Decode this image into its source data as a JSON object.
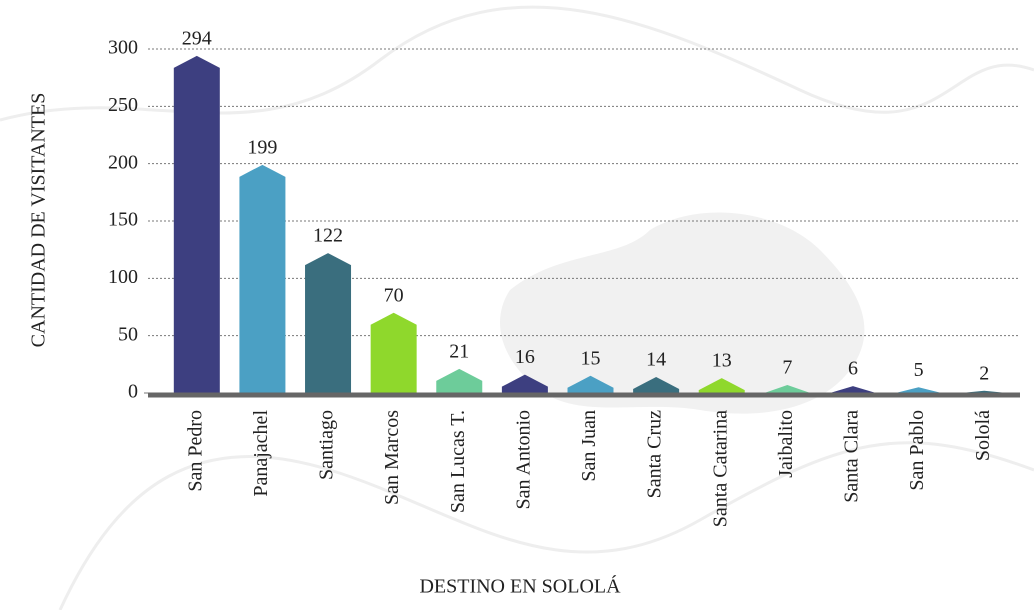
{
  "chart_data": {
    "type": "bar",
    "xlabel": "DESTINO EN SOLOLÁ",
    "ylabel": "CANTIDAD DE VISITANTES",
    "categories": [
      "San Pedro",
      "Panajachel",
      "Santiago",
      "San Marcos",
      "San Lucas T.",
      "San Antonio",
      "San Juan",
      "Santa Cruz",
      "Santa Catarina",
      "Jaibalito",
      "Santa Clara",
      "San Pablo",
      "Sololá"
    ],
    "values": [
      294,
      199,
      122,
      70,
      21,
      16,
      15,
      14,
      13,
      7,
      6,
      5,
      2
    ],
    "colors": [
      "#3d3f80",
      "#4ba0c4",
      "#3a6e7e",
      "#8fd82c",
      "#6dcc9a",
      "#3d3f80",
      "#4ba0c4",
      "#3a6e7e",
      "#8fd82c",
      "#6dcc9a",
      "#3d3f80",
      "#4ba0c4",
      "#3a6e7e"
    ],
    "ylim": [
      0,
      300
    ],
    "yticks": [
      0,
      50,
      100,
      150,
      200,
      250,
      300
    ],
    "grid": true
  }
}
